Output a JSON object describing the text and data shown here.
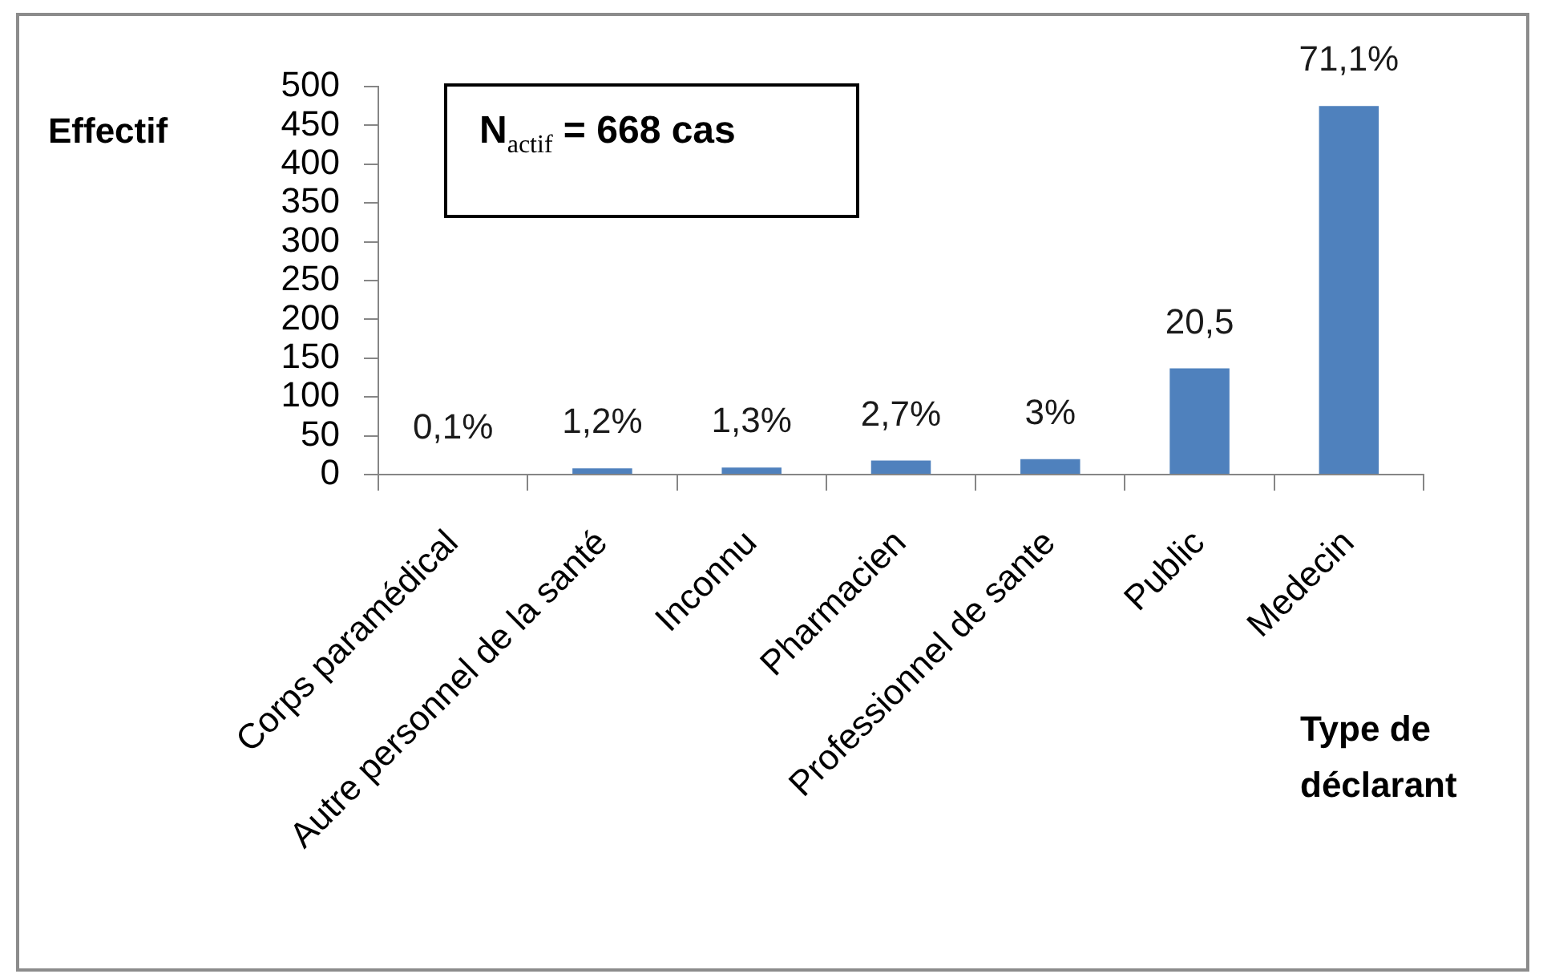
{
  "chart_data": {
    "type": "bar",
    "categories": [
      "Corps paramédical",
      "Autre personnel de la santé",
      "Inconnu",
      "Pharmacien",
      "Professionnel de sante",
      "Public",
      "Medecin"
    ],
    "values": [
      1,
      8,
      9,
      18,
      20,
      137,
      475
    ],
    "color": "#4f81bd",
    "ylabel": "Effectif",
    "xlabel": "Type de déclarant",
    "annotations": [
      "N$_{actif}$ = 668 cas",
      {
        "text": "0,1%",
        "x": "Corps paramédical",
        "y": 1
      },
      {
        "text": "1,2%",
        "x": "Autre personnel de la santé",
        "y": 8
      },
      {
        "text": "1,3%",
        "x": "Inconnu",
        "y": 9
      },
      {
        "text": "2,7%",
        "x": "Pharmacien",
        "y": 18
      },
      {
        "text": "3%",
        "x": "Professionnel de sante",
        "y": 20
      },
      {
        "text": "20,5",
        "x": "Public",
        "y": 137
      },
      {
        "text": "71,1%",
        "x": "Medecin",
        "y": 475
      }
    ],
    "ylim": [
      0,
      500
    ],
    "yticks": [
      0,
      50,
      100,
      150,
      200,
      250,
      300,
      350,
      400,
      450,
      500
    ]
  }
}
